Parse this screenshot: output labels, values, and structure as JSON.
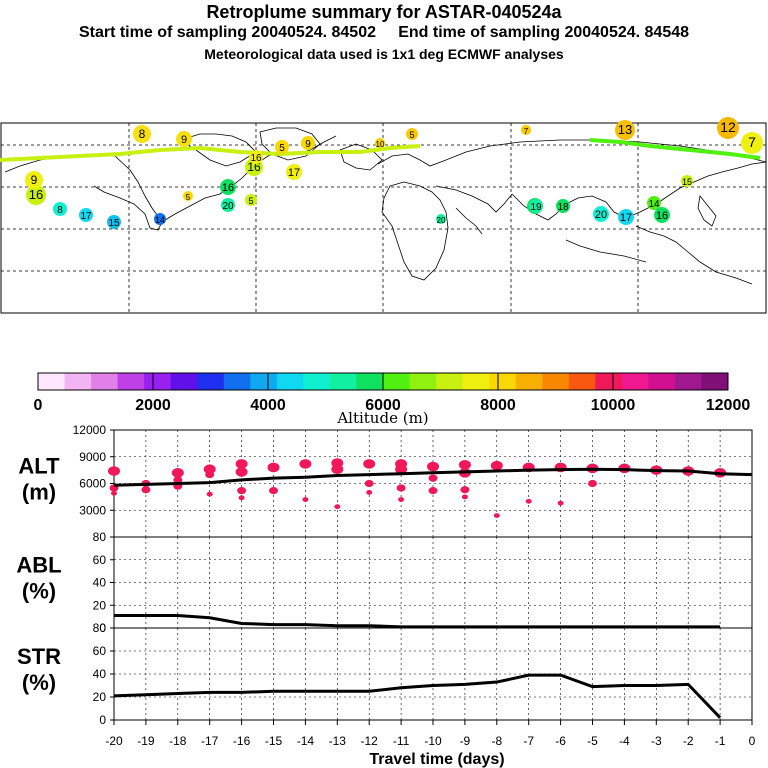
{
  "header": {
    "title": "Retroplume summary for ASTAR-040524a",
    "sampling": "Start time of sampling 20040524. 84502     End time of sampling 20040524. 84548",
    "met_data": "Meteorological data used is 1x1 deg ECMWF analyses"
  },
  "colorbar": {
    "label": "Altitude (m)",
    "tick_labels": [
      "0",
      "2000",
      "4000",
      "6000",
      "8000",
      "10000",
      "12000"
    ],
    "colors": [
      "#ffe8ff",
      "#f3b4f3",
      "#e080e8",
      "#c040e8",
      "#9820f0",
      "#6010e8",
      "#2030f0",
      "#1070f0",
      "#10a8f0",
      "#10d8f0",
      "#10f0d0",
      "#10f0a0",
      "#10e060",
      "#50f010",
      "#90f010",
      "#c8f010",
      "#f0f010",
      "#f8d800",
      "#f8b000",
      "#f88800",
      "#f85810",
      "#f01858",
      "#f01890",
      "#d01090",
      "#a01890",
      "#801078"
    ]
  },
  "map": {
    "markers": [
      {
        "label": "8",
        "color": "#f8e010"
      },
      {
        "label": "9",
        "color": "#f8e010"
      },
      {
        "label": "5",
        "color": "#f8d800"
      },
      {
        "label": "9",
        "color": "#f8d800"
      },
      {
        "label": "10",
        "color": "#f8d000"
      },
      {
        "label": "5",
        "color": "#f8c800"
      },
      {
        "label": "7",
        "color": "#f8c800"
      },
      {
        "label": "13",
        "color": "#f8c000"
      },
      {
        "label": "12",
        "color": "#f8b800"
      },
      {
        "label": "7",
        "color": "#f0f010"
      },
      {
        "label": "16",
        "color": "#c8f010"
      },
      {
        "label": "9",
        "color": "#f0f010"
      },
      {
        "label": "16",
        "color": "#10e060"
      },
      {
        "label": "20",
        "color": "#10f0a0"
      },
      {
        "label": "8",
        "color": "#10f0d0"
      },
      {
        "label": "17",
        "color": "#10d8f0"
      },
      {
        "label": "15",
        "color": "#10c0f0"
      },
      {
        "label": "14",
        "color": "#1070f0"
      },
      {
        "label": "16",
        "color": "#c8f010"
      },
      {
        "label": "5",
        "color": "#c8f010"
      },
      {
        "label": "17",
        "color": "#f0f010"
      },
      {
        "label": "19",
        "color": "#10e060"
      },
      {
        "label": "20",
        "color": "#10f0a0"
      },
      {
        "label": "19",
        "color": "#10f0a0"
      },
      {
        "label": "18",
        "color": "#10e060"
      },
      {
        "label": "20",
        "color": "#10f0d0"
      },
      {
        "label": "17",
        "color": "#10d8f0"
      },
      {
        "label": "14",
        "color": "#50f010"
      },
      {
        "label": "16",
        "color": "#10e060"
      },
      {
        "label": "15",
        "color": "#c8f010"
      },
      {
        "label": "16",
        "color": "#f0f010"
      },
      {
        "label": "5",
        "color": "#f8d800"
      }
    ]
  },
  "chart_data": [
    {
      "type": "scatter",
      "panel": "ALT",
      "ylabel": "ALT\n(m)",
      "ylim": [
        0,
        12000
      ],
      "yticks": [
        3000,
        6000,
        9000,
        12000
      ],
      "xlim": [
        -20,
        0
      ],
      "line": {
        "x": [
          -20,
          -19,
          -18,
          -17,
          -16,
          -15,
          -14,
          -13,
          -12,
          -11,
          -10,
          -9,
          -8,
          -7,
          -6,
          -5,
          -4,
          -3,
          -2,
          -1,
          0
        ],
        "y": [
          5800,
          5900,
          6000,
          6100,
          6400,
          6600,
          6700,
          6900,
          7000,
          7100,
          7200,
          7300,
          7400,
          7500,
          7550,
          7600,
          7550,
          7450,
          7400,
          7100,
          7000
        ]
      },
      "points": [
        {
          "x": -20,
          "y": 7400
        },
        {
          "x": -20,
          "y": 5500
        },
        {
          "x": -20,
          "y": 4900
        },
        {
          "x": -19,
          "y": 6000
        },
        {
          "x": -19,
          "y": 5300
        },
        {
          "x": -18,
          "y": 7200
        },
        {
          "x": -18,
          "y": 6400
        },
        {
          "x": -18,
          "y": 5700
        },
        {
          "x": -17,
          "y": 7600
        },
        {
          "x": -17,
          "y": 7000
        },
        {
          "x": -17,
          "y": 4800
        },
        {
          "x": -16,
          "y": 8200
        },
        {
          "x": -16,
          "y": 7300
        },
        {
          "x": -16,
          "y": 5200
        },
        {
          "x": -16,
          "y": 4400
        },
        {
          "x": -15,
          "y": 7800
        },
        {
          "x": -15,
          "y": 5200
        },
        {
          "x": -14,
          "y": 8200
        },
        {
          "x": -14,
          "y": 4200
        },
        {
          "x": -13,
          "y": 8300
        },
        {
          "x": -13,
          "y": 7600
        },
        {
          "x": -13,
          "y": 3400
        },
        {
          "x": -12,
          "y": 8200
        },
        {
          "x": -12,
          "y": 6000
        },
        {
          "x": -12,
          "y": 5000
        },
        {
          "x": -11,
          "y": 8200
        },
        {
          "x": -11,
          "y": 7600
        },
        {
          "x": -11,
          "y": 5500
        },
        {
          "x": -11,
          "y": 4200
        },
        {
          "x": -10,
          "y": 7900
        },
        {
          "x": -10,
          "y": 6600
        },
        {
          "x": -10,
          "y": 5200
        },
        {
          "x": -9,
          "y": 8100
        },
        {
          "x": -9,
          "y": 7200
        },
        {
          "x": -9,
          "y": 5300
        },
        {
          "x": -9,
          "y": 4500
        },
        {
          "x": -8,
          "y": 8000
        },
        {
          "x": -8,
          "y": 2400
        },
        {
          "x": -7,
          "y": 7800
        },
        {
          "x": -7,
          "y": 4000
        },
        {
          "x": -6,
          "y": 7800
        },
        {
          "x": -6,
          "y": 3800
        },
        {
          "x": -5,
          "y": 7700
        },
        {
          "x": -5,
          "y": 6000
        },
        {
          "x": -4,
          "y": 7700
        },
        {
          "x": -3,
          "y": 7500
        },
        {
          "x": -2,
          "y": 7400
        },
        {
          "x": -1,
          "y": 7200
        }
      ]
    },
    {
      "type": "line",
      "panel": "ABL",
      "ylabel": "ABL\n(%)",
      "ylim": [
        0,
        80
      ],
      "yticks": [
        0,
        20,
        40,
        60,
        80
      ],
      "x": [
        -20,
        -19,
        -18,
        -17,
        -16,
        -15,
        -14,
        -13,
        -12,
        -11,
        -10,
        -9,
        -8,
        -7,
        -6,
        -5,
        -4,
        -3,
        -2,
        -1
      ],
      "y": [
        11,
        11,
        11,
        9,
        4,
        3,
        3,
        2,
        2,
        1,
        1,
        1,
        1,
        1,
        1,
        1,
        1,
        1,
        1,
        1
      ]
    },
    {
      "type": "line",
      "panel": "STR",
      "ylabel": "STR\n(%)",
      "ylim": [
        0,
        80
      ],
      "yticks": [
        0,
        20,
        40,
        60,
        80
      ],
      "x": [
        -20,
        -19,
        -18,
        -17,
        -16,
        -15,
        -14,
        -13,
        -12,
        -11,
        -10,
        -9,
        -8,
        -7,
        -6,
        -5,
        -4,
        -3,
        -2,
        -1
      ],
      "y": [
        21,
        22,
        23,
        24,
        24,
        25,
        25,
        25,
        25,
        28,
        30,
        31,
        33,
        39,
        39,
        29,
        30,
        30,
        31,
        2
      ]
    }
  ],
  "x_axis": {
    "label": "Travel time (days)",
    "tick_labels": [
      "-20",
      "-19",
      "-18",
      "-17",
      "-16",
      "-15",
      "-14",
      "-13",
      "-12",
      "-11",
      "-10",
      "-9",
      "-8",
      "-7",
      "-6",
      "-5",
      "-4",
      "-3",
      "-2",
      "-1",
      "0"
    ]
  },
  "style": {
    "point_color": "#f01858",
    "line_color": "#000000"
  }
}
